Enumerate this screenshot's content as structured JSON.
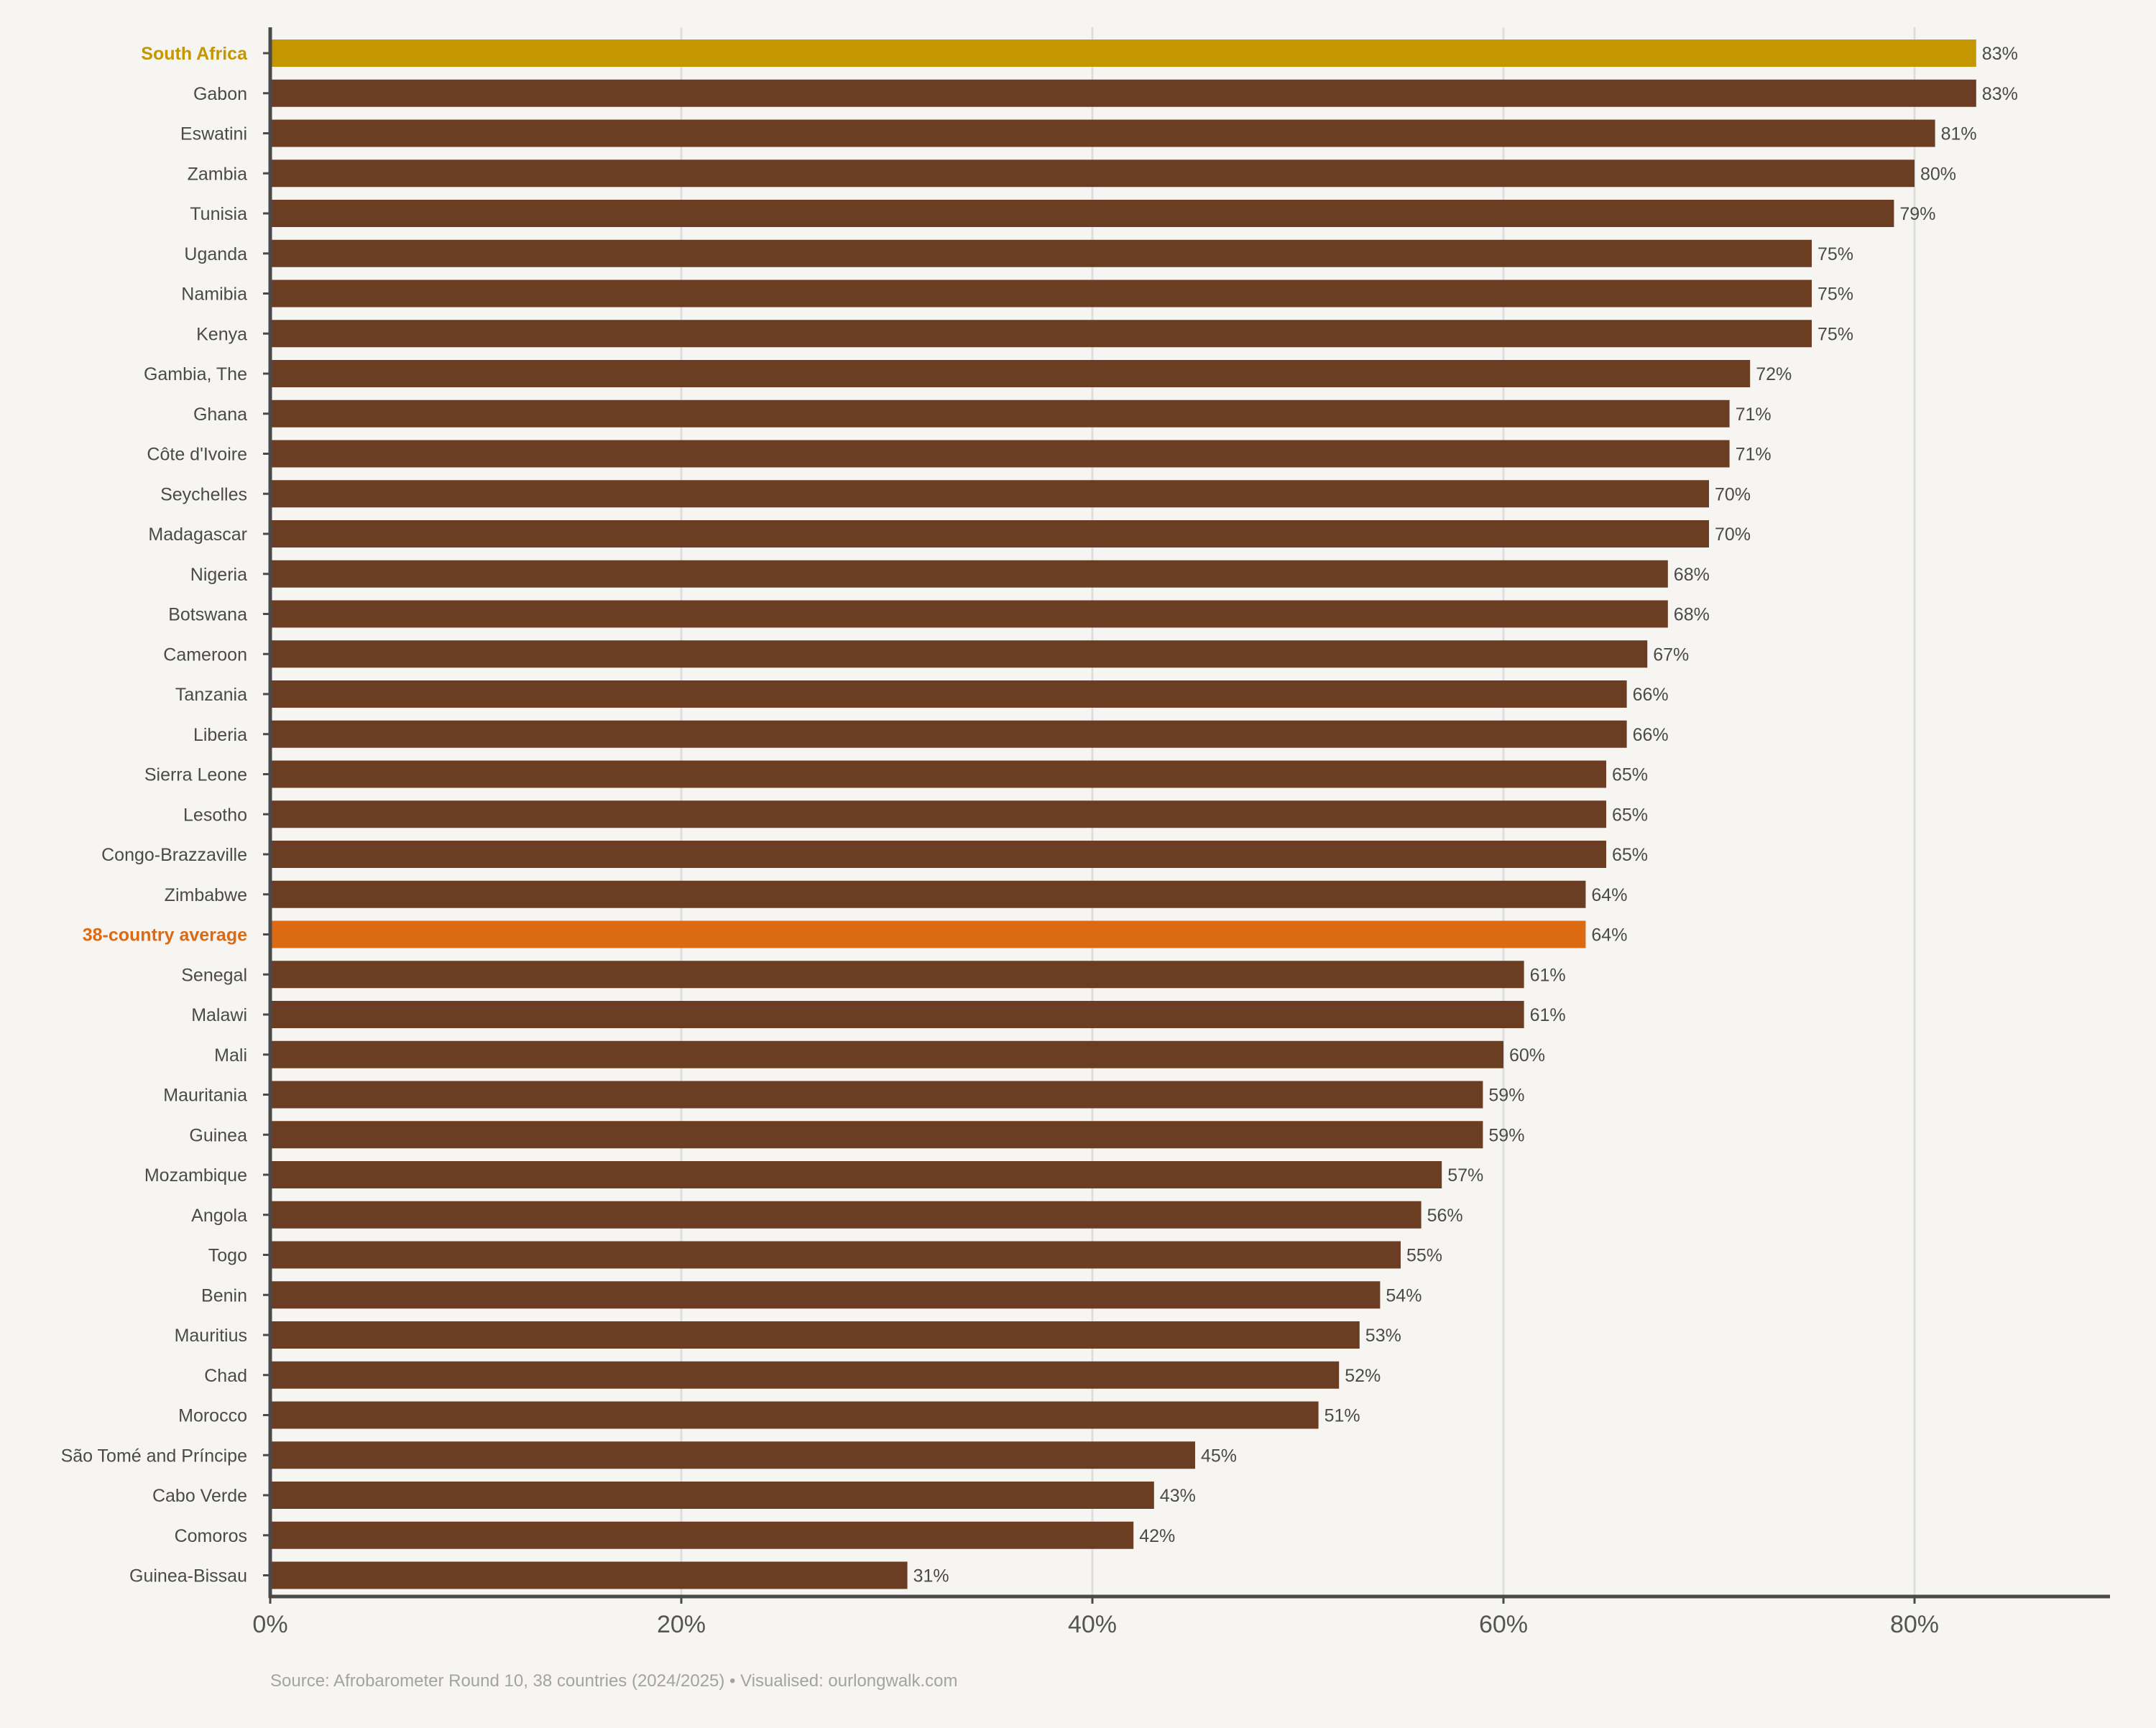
{
  "source_note": "Source: Afrobarometer Round 10, 38 countries (2024/2025) • Visualised: ourlongwalk.com",
  "colors": {
    "background": "#f6f5f2",
    "bar_default": "#6b3e24",
    "bar_highlight_country": "#c49600",
    "bar_average": "#db6a13",
    "axis": "#4a4a4a",
    "grid": "#dedede",
    "label_text": "#4a4a4a",
    "value_text": "#4a4a4a"
  },
  "chart_data": {
    "type": "bar",
    "orientation": "horizontal",
    "title": "",
    "xlabel": "",
    "ylabel": "",
    "xlim": [
      0,
      90
    ],
    "x_ticks": [
      0,
      20,
      40,
      60,
      80
    ],
    "x_tick_labels": [
      "0%",
      "20%",
      "40%",
      "60%",
      "80%"
    ],
    "grid": "vertical",
    "categories": [
      "South Africa",
      "Gabon",
      "Eswatini",
      "Zambia",
      "Tunisia",
      "Uganda",
      "Namibia",
      "Kenya",
      "Gambia, The",
      "Ghana",
      "Côte d'Ivoire",
      "Seychelles",
      "Madagascar",
      "Nigeria",
      "Botswana",
      "Cameroon",
      "Tanzania",
      "Liberia",
      "Sierra Leone",
      "Lesotho",
      "Congo-Brazzaville",
      "Zimbabwe",
      "38-country average",
      "Senegal",
      "Malawi",
      "Mali",
      "Mauritania",
      "Guinea",
      "Mozambique",
      "Angola",
      "Togo",
      "Benin",
      "Mauritius",
      "Chad",
      "Morocco",
      "São Tomé and Príncipe",
      "Cabo Verde",
      "Comoros",
      "Guinea-Bissau"
    ],
    "values": [
      83,
      83,
      81,
      80,
      79,
      75,
      75,
      75,
      72,
      71,
      71,
      70,
      70,
      68,
      68,
      67,
      66,
      66,
      65,
      65,
      65,
      64,
      64,
      61,
      61,
      60,
      59,
      59,
      57,
      56,
      55,
      54,
      53,
      52,
      51,
      45,
      43,
      42,
      31
    ],
    "value_labels": [
      "83%",
      "83%",
      "81%",
      "80%",
      "79%",
      "75%",
      "75%",
      "75%",
      "72%",
      "71%",
      "71%",
      "70%",
      "70%",
      "68%",
      "68%",
      "67%",
      "66%",
      "66%",
      "65%",
      "65%",
      "65%",
      "64%",
      "64%",
      "61%",
      "61%",
      "60%",
      "59%",
      "59%",
      "57%",
      "56%",
      "55%",
      "54%",
      "53%",
      "52%",
      "51%",
      "45%",
      "43%",
      "42%",
      "31%"
    ],
    "highlights": {
      "South Africa": "highlight_country",
      "38-country average": "average"
    }
  }
}
